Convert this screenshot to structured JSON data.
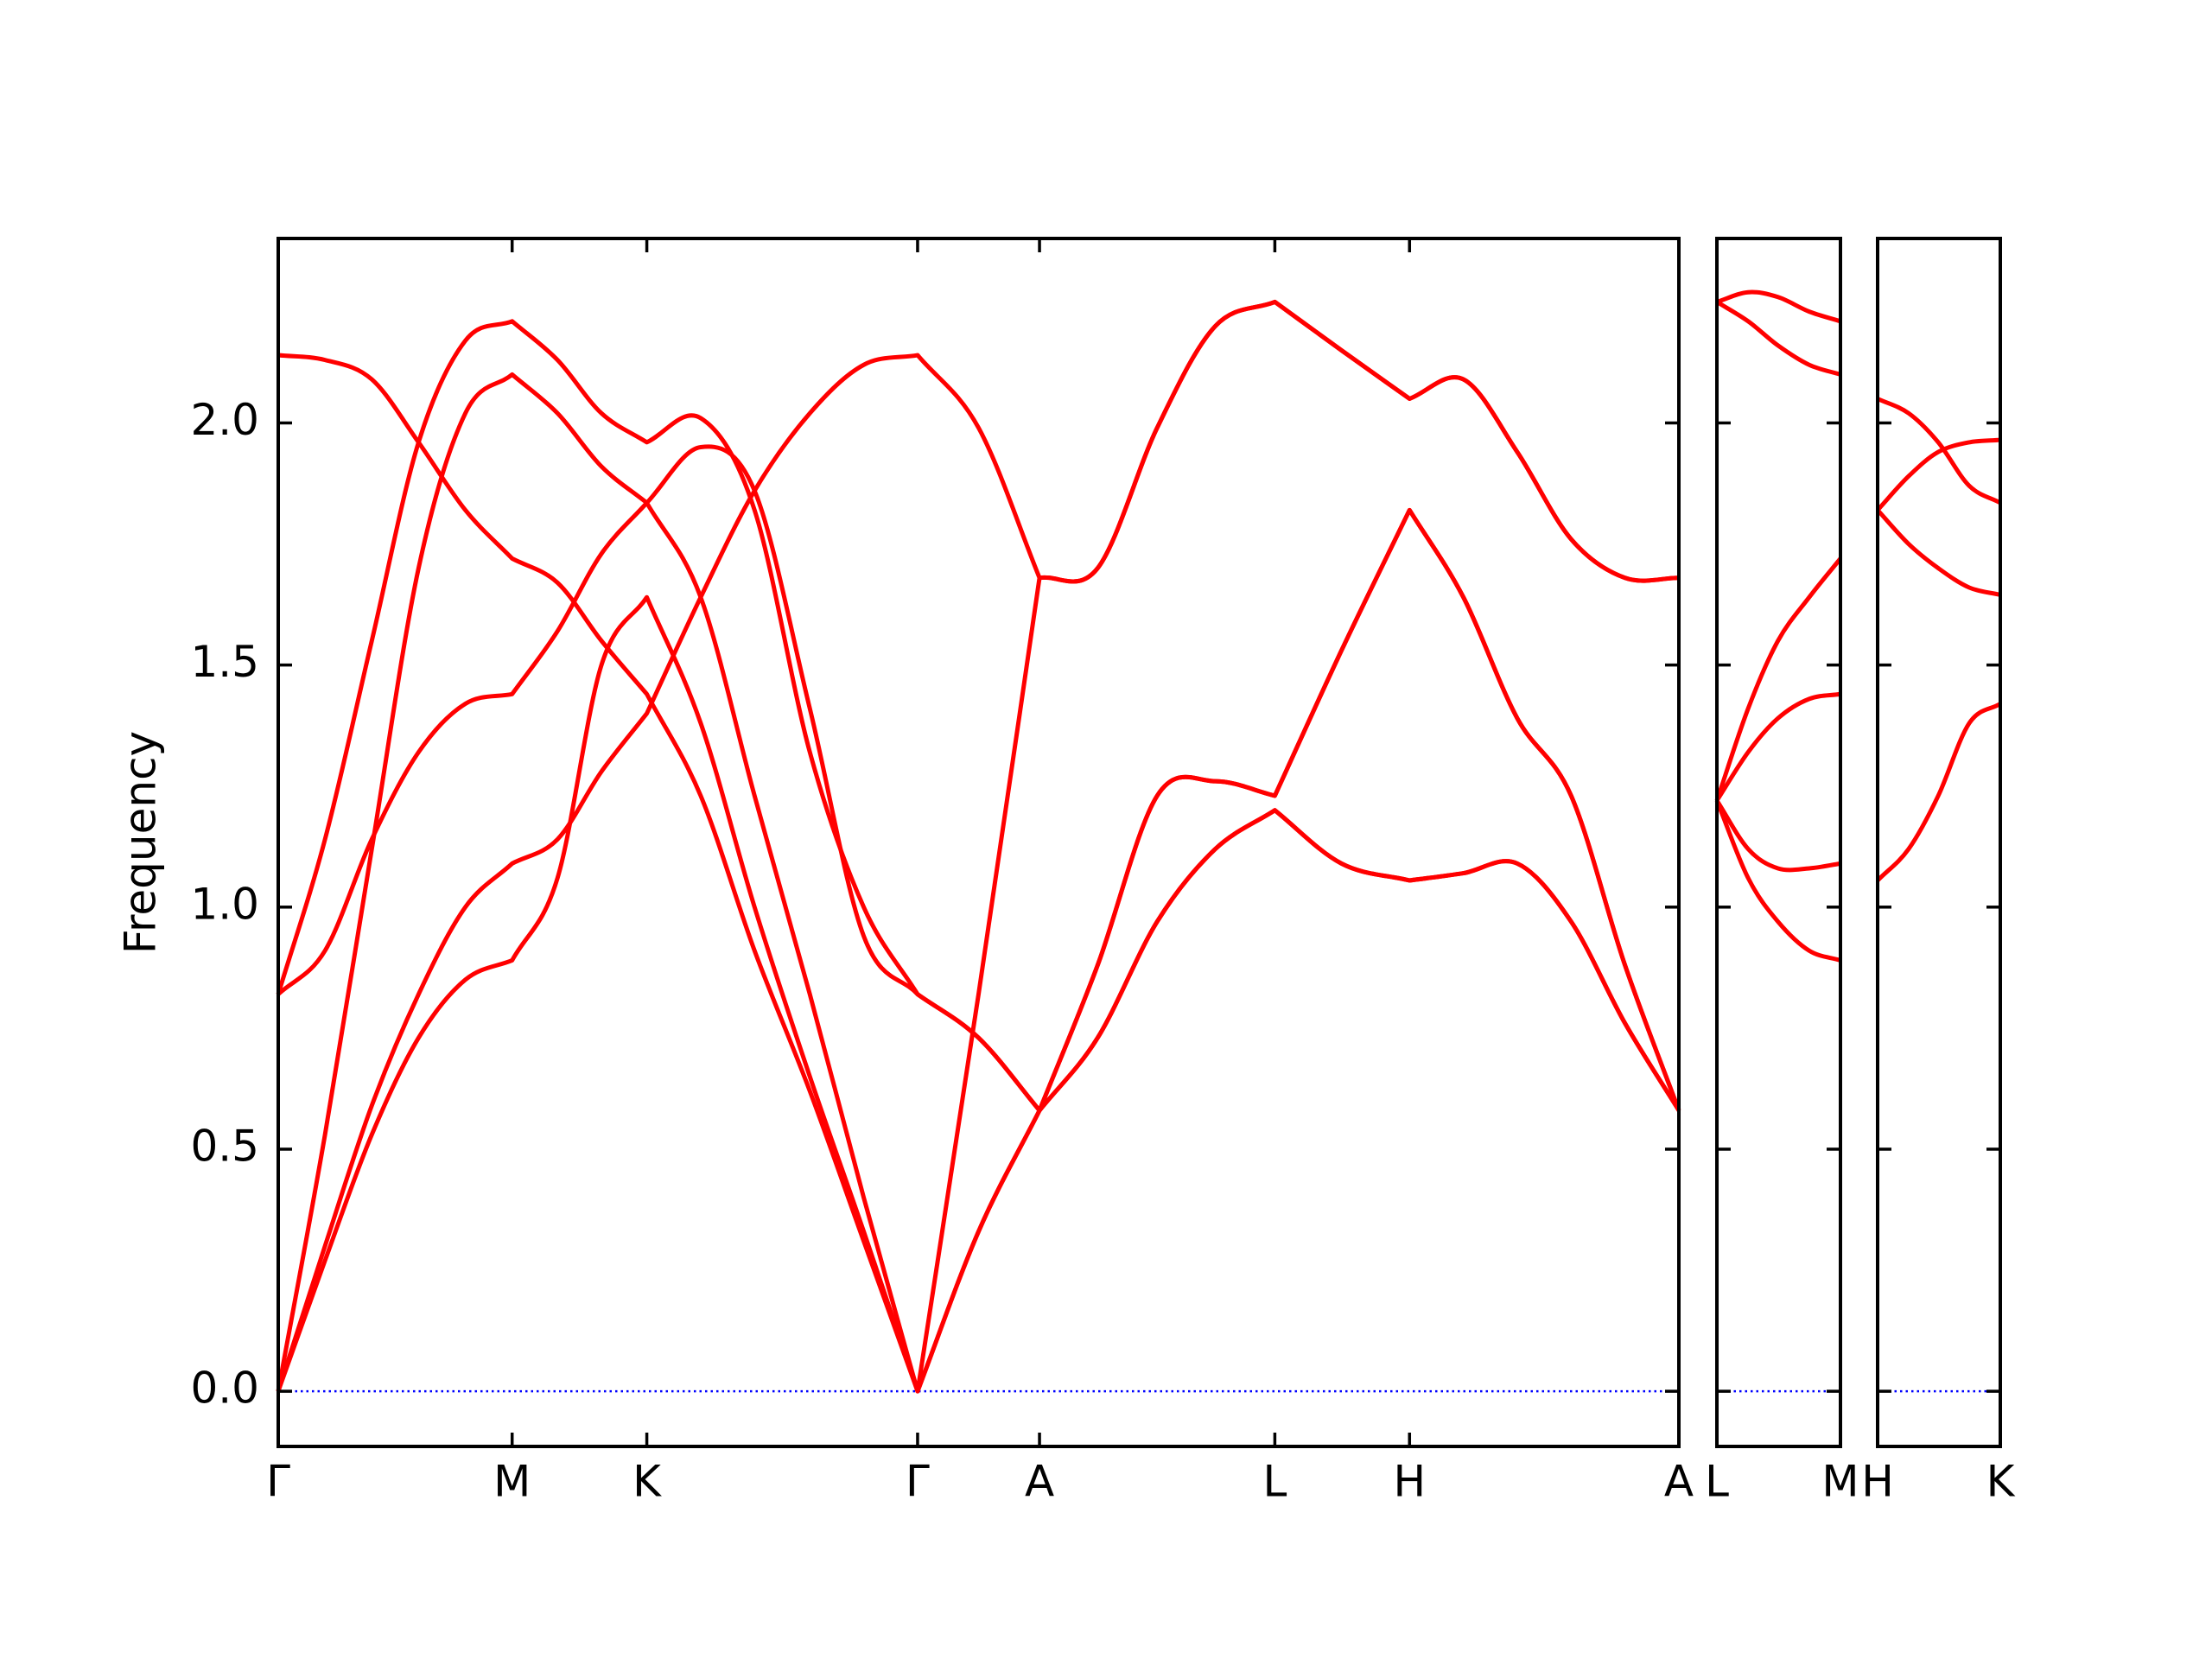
{
  "chart_data": [
    {
      "type": "line",
      "ylabel": "Frequency",
      "color": "#ff0000",
      "hline": 0,
      "hline_color": "#0000ff",
      "xlim": [
        0,
        0.988
      ],
      "ylim": [
        -0.114,
        2.381
      ],
      "xticks": [
        {
          "value": 0,
          "label": "Γ"
        },
        {
          "value": 0.165,
          "label": "M"
        },
        {
          "value": 0.26,
          "label": "K"
        },
        {
          "value": 0.451,
          "label": "Γ"
        },
        {
          "value": 0.537,
          "label": "A"
        },
        {
          "value": 0.703,
          "label": "L"
        },
        {
          "value": 0.798,
          "label": "H"
        },
        {
          "value": 0.988,
          "label": "A"
        }
      ],
      "yticks": [
        {
          "value": 0,
          "label": "0.0"
        },
        0.5,
        {
          "value": 1,
          "label": "1.0"
        },
        1.5,
        {
          "value": 2,
          "label": "2.0"
        }
      ],
      "x": [
        0,
        0.033,
        0.066,
        0.099,
        0.132,
        0.165,
        0.197,
        0.228,
        0.26,
        0.298,
        0.336,
        0.375,
        0.413,
        0.451,
        0.494,
        0.537,
        0.578,
        0.62,
        0.661,
        0.703,
        0.75,
        0.798,
        0.836,
        0.874,
        0.912,
        0.95,
        0.988
      ],
      "series": [
        {
          "values": [
            2.14,
            2.13,
            2.09,
            1.96,
            1.82,
            1.72,
            1.67,
            1.55,
            1.44,
            1.23,
            0.91,
            0.62,
            0.31,
            0,
            0.33,
            0.58,
            0.73,
            0.97,
            1.12,
            1.2,
            1.09,
            1.055,
            1.07,
            1.09,
            0.97,
            0.76,
            0.58
          ]
        },
        {
          "values": [
            0.82,
            1.14,
            1.55,
            1.96,
            2.17,
            2.21,
            2.13,
            2.02,
            1.96,
            2.01,
            1.82,
            1.32,
            1.0,
            0.82,
            0.73,
            0.58,
            0.88,
            1.23,
            1.26,
            1.23,
            1.53,
            1.82,
            1.64,
            1.39,
            1.23,
            0.88,
            0.58
          ]
        },
        {
          "values": [
            0.82,
            0.91,
            1.14,
            1.32,
            1.42,
            1.44,
            1.57,
            1.73,
            1.835,
            1.64,
            1.23,
            0.82,
            0.4,
            0,
            0.82,
            1.68,
            1.7,
            1.99,
            2.2,
            2.25,
            2.15,
            2.05,
            2.09,
            1.94,
            1.76,
            1.68,
            1.68
          ]
        },
        {
          "values": [
            0,
            0.53,
            1.12,
            1.7,
            2.02,
            2.1,
            2.02,
            1.91,
            1.835,
            1.95,
            1.86,
            1.41,
            0.94,
            0.82,
            0.73,
            0.58,
            0.88,
            1.23,
            1.26,
            1.23,
            1.53,
            1.82,
            1.64,
            1.39,
            1.23,
            0.88,
            0.58
          ]
        },
        {
          "values": [
            0,
            0.3,
            0.59,
            0.82,
            1.0,
            1.09,
            1.14,
            1.28,
            1.4,
            1.64,
            1.86,
            2.02,
            2.12,
            2.14,
            1.99,
            1.68,
            1.7,
            1.99,
            2.2,
            2.25,
            2.15,
            2.05,
            2.09,
            1.94,
            1.76,
            1.68,
            1.68
          ]
        },
        {
          "values": [
            0,
            0.27,
            0.53,
            0.73,
            0.85,
            0.89,
            1.06,
            1.5,
            1.64,
            1.38,
            1.0,
            0.65,
            0.33,
            0,
            0.33,
            0.58,
            0.73,
            0.97,
            1.12,
            1.2,
            1.09,
            1.055,
            1.07,
            1.09,
            0.97,
            0.76,
            0.58
          ]
        }
      ]
    },
    {
      "type": "line",
      "color": "#ff0000",
      "hline": 0,
      "hline_color": "#0000ff",
      "xlim": [
        0,
        0.087
      ],
      "ylim": [
        -0.114,
        2.381
      ],
      "xticks": [
        {
          "value": 0,
          "label": "L"
        },
        {
          "value": 0.087,
          "label": "M"
        }
      ],
      "yticks": [
        0,
        0.5,
        1,
        1.5,
        2
      ],
      "ytick_labels": false,
      "x": [
        0,
        0.022,
        0.043,
        0.065,
        0.087
      ],
      "series": [
        {
          "values": [
            2.25,
            2.27,
            2.26,
            2.23,
            2.21
          ]
        },
        {
          "values": [
            2.25,
            2.21,
            2.16,
            2.12,
            2.1
          ]
        },
        {
          "values": [
            1.22,
            1.41,
            1.55,
            1.64,
            1.72
          ]
        },
        {
          "values": [
            1.22,
            1.32,
            1.39,
            1.43,
            1.44
          ]
        },
        {
          "values": [
            1.22,
            1.12,
            1.08,
            1.08,
            1.09
          ]
        },
        {
          "values": [
            1.22,
            1.06,
            0.97,
            0.91,
            0.89
          ]
        }
      ]
    },
    {
      "type": "line",
      "color": "#ff0000",
      "hline": 0,
      "hline_color": "#0000ff",
      "xlim": [
        0,
        0.087
      ],
      "ylim": [
        -0.114,
        2.381
      ],
      "xticks": [
        {
          "value": 0,
          "label": "H"
        },
        {
          "value": 0.087,
          "label": "K"
        }
      ],
      "yticks": [
        0,
        0.5,
        1,
        1.5,
        2
      ],
      "ytick_labels": false,
      "x": [
        0,
        0.022,
        0.043,
        0.065,
        0.087
      ],
      "series": [
        {
          "values": [
            2.05,
            2.02,
            1.96,
            1.87,
            1.835
          ]
        },
        {
          "values": [
            1.82,
            1.89,
            1.94,
            1.96,
            1.965
          ]
        },
        {
          "values": [
            1.82,
            1.75,
            1.7,
            1.66,
            1.645
          ]
        },
        {
          "values": [
            1.055,
            1.12,
            1.23,
            1.38,
            1.42
          ]
        }
      ]
    }
  ]
}
